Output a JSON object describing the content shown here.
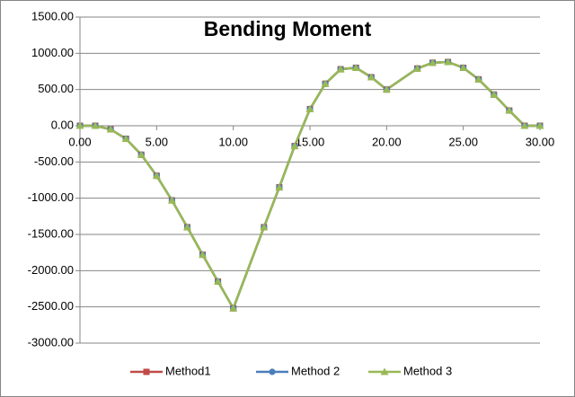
{
  "chart_data": {
    "type": "line",
    "title": "Bending Moment",
    "x": [
      0,
      1,
      2,
      3,
      4,
      5,
      6,
      7,
      8,
      9,
      10,
      12,
      13,
      14,
      15,
      16,
      17,
      18,
      19,
      20,
      22,
      23,
      24,
      25,
      26,
      27,
      28,
      29,
      30
    ],
    "series": [
      {
        "name": "Method1",
        "color": "#be4b48",
        "marker": "square",
        "values": [
          0,
          0,
          -50,
          -180,
          -400,
          -690,
          -1030,
          -1400,
          -1780,
          -2150,
          -2520,
          -1400,
          -850,
          -280,
          230,
          580,
          780,
          800,
          670,
          500,
          790,
          870,
          880,
          800,
          640,
          430,
          210,
          0,
          0
        ]
      },
      {
        "name": "Method 2",
        "color": "#4a7ebb",
        "marker": "circle",
        "values": [
          0,
          0,
          -50,
          -180,
          -400,
          -690,
          -1030,
          -1400,
          -1780,
          -2150,
          -2520,
          -1400,
          -850,
          -280,
          230,
          580,
          780,
          800,
          670,
          500,
          790,
          870,
          880,
          800,
          640,
          430,
          210,
          0,
          0
        ]
      },
      {
        "name": "Method 3",
        "color": "#98b954",
        "marker": "triangle",
        "values": [
          0,
          0,
          -50,
          -180,
          -400,
          -690,
          -1030,
          -1400,
          -1780,
          -2150,
          -2520,
          -1400,
          -850,
          -280,
          230,
          580,
          780,
          800,
          670,
          500,
          790,
          870,
          880,
          800,
          640,
          430,
          210,
          0,
          0
        ]
      }
    ],
    "xlim": [
      0,
      30
    ],
    "xticks": [
      {
        "value": 0,
        "label": "0.00"
      },
      {
        "value": 5,
        "label": "5.00"
      },
      {
        "value": 10,
        "label": "10.00"
      },
      {
        "value": 15,
        "label": "15.00"
      },
      {
        "value": 20,
        "label": "20.00"
      },
      {
        "value": 25,
        "label": "25.00"
      },
      {
        "value": 30,
        "label": "30.00"
      }
    ],
    "ylim": [
      -3000,
      1500
    ],
    "yticks": [
      {
        "value": -3000,
        "label": "-3000.00"
      },
      {
        "value": -2500,
        "label": "-2500.00"
      },
      {
        "value": -2000,
        "label": "-2000.00"
      },
      {
        "value": -1500,
        "label": "-1500.00"
      },
      {
        "value": -1000,
        "label": "-1000.00"
      },
      {
        "value": -500,
        "label": "-500.00"
      },
      {
        "value": 0,
        "label": "0.00"
      },
      {
        "value": 500,
        "label": "500.00"
      },
      {
        "value": 1000,
        "label": "1000.00"
      },
      {
        "value": 1500,
        "label": "1500.00"
      }
    ],
    "grid": true,
    "legend": "bottom"
  }
}
